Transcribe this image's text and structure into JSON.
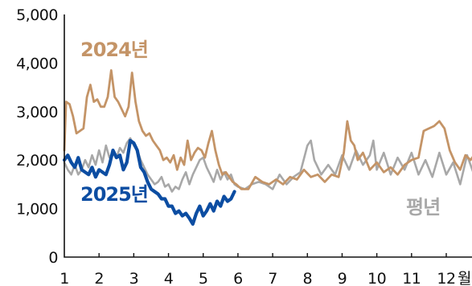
{
  "colors": {
    "y2024": "#C49467",
    "y2025": "#0C4DA2",
    "normal": "#A8A8A8",
    "axis": "#111111"
  },
  "chart_data": {
    "type": "line",
    "title": "",
    "xlabel": "",
    "ylabel": "",
    "x_unit_label": "월",
    "xlim": [
      1,
      13
    ],
    "ylim": [
      0,
      5000
    ],
    "x_ticks": [
      "1",
      "2",
      "3",
      "4",
      "5",
      "6",
      "7",
      "8",
      "9",
      "10",
      "11",
      "12"
    ],
    "y_ticks": [
      "0",
      "1,000",
      "2,000",
      "3,000",
      "4,000",
      "5,000"
    ],
    "grid": false,
    "series": [
      {
        "name": "평년",
        "color_key": "normal",
        "x": [
          1.0,
          1.1,
          1.2,
          1.3,
          1.4,
          1.5,
          1.6,
          1.7,
          1.8,
          1.9,
          2.0,
          2.1,
          2.2,
          2.3,
          2.4,
          2.5,
          2.6,
          2.7,
          2.8,
          2.9,
          3.0,
          3.1,
          3.2,
          3.3,
          3.4,
          3.5,
          3.6,
          3.7,
          3.8,
          3.9,
          4.0,
          4.1,
          4.2,
          4.3,
          4.4,
          4.5,
          4.6,
          4.7,
          4.8,
          4.9,
          5.0,
          5.1,
          5.2,
          5.3,
          5.4,
          5.5,
          5.6,
          5.7,
          5.8,
          5.9,
          6.0,
          6.2,
          6.4,
          6.6,
          6.8,
          7.0,
          7.2,
          7.4,
          7.6,
          7.8,
          8.0,
          8.1,
          8.2,
          8.4,
          8.6,
          8.8,
          9.0,
          9.2,
          9.4,
          9.6,
          9.8,
          9.9,
          10.0,
          10.2,
          10.4,
          10.6,
          10.8,
          11.0,
          11.2,
          11.4,
          11.6,
          11.8,
          12.0,
          12.2,
          12.4,
          12.6,
          12.8,
          12.95
        ],
        "values": [
          1950,
          1800,
          1700,
          1900,
          1700,
          1800,
          2000,
          1850,
          2100,
          1900,
          2200,
          1950,
          2300,
          2050,
          2150,
          2050,
          2250,
          2150,
          2350,
          2450,
          2300,
          2200,
          2000,
          1850,
          1700,
          1600,
          1500,
          1550,
          1650,
          1450,
          1500,
          1350,
          1450,
          1400,
          1600,
          1750,
          1500,
          1700,
          1850,
          2000,
          2050,
          1850,
          1700,
          1550,
          1800,
          1600,
          1750,
          1600,
          1700,
          1500,
          1450,
          1400,
          1500,
          1550,
          1500,
          1400,
          1700,
          1500,
          1650,
          1750,
          2300,
          2400,
          2000,
          1700,
          1900,
          1700,
          2100,
          1800,
          2200,
          1900,
          2100,
          2400,
          1800,
          2150,
          1700,
          2050,
          1800,
          2150,
          1700,
          2000,
          1650,
          2150,
          1700,
          1950,
          1500,
          2100,
          1700,
          1550
        ]
      },
      {
        "name": "2024년",
        "color_key": "y2024",
        "x": [
          1.0,
          1.05,
          1.15,
          1.25,
          1.35,
          1.45,
          1.55,
          1.65,
          1.75,
          1.85,
          1.95,
          2.05,
          2.15,
          2.25,
          2.35,
          2.45,
          2.55,
          2.65,
          2.75,
          2.85,
          2.95,
          3.05,
          3.15,
          3.25,
          3.35,
          3.45,
          3.55,
          3.65,
          3.75,
          3.85,
          3.95,
          4.05,
          4.15,
          4.25,
          4.35,
          4.45,
          4.55,
          4.65,
          4.75,
          4.85,
          4.95,
          5.05,
          5.15,
          5.25,
          5.35,
          5.45,
          5.55,
          5.65,
          5.75,
          5.85,
          5.95,
          6.1,
          6.3,
          6.5,
          6.7,
          6.9,
          7.1,
          7.3,
          7.5,
          7.7,
          7.9,
          8.1,
          8.3,
          8.5,
          8.7,
          8.9,
          9.05,
          9.15,
          9.25,
          9.35,
          9.45,
          9.6,
          9.8,
          10.0,
          10.2,
          10.4,
          10.6,
          10.8,
          11.0,
          11.2,
          11.35,
          11.5,
          11.65,
          11.8,
          11.95,
          12.1,
          12.25,
          12.4,
          12.55,
          12.7,
          12.85,
          12.95
        ],
        "values": [
          2200,
          3200,
          3150,
          2900,
          2550,
          2600,
          2650,
          3300,
          3550,
          3200,
          3250,
          3100,
          3100,
          3300,
          3850,
          3300,
          3200,
          3050,
          2900,
          3100,
          3800,
          3200,
          2800,
          2600,
          2500,
          2550,
          2400,
          2300,
          2200,
          2000,
          2050,
          1950,
          2100,
          1800,
          2050,
          1900,
          2400,
          2000,
          2150,
          2250,
          2200,
          2050,
          2350,
          2600,
          2200,
          1900,
          1700,
          1750,
          1650,
          1550,
          1500,
          1400,
          1400,
          1650,
          1550,
          1500,
          1600,
          1500,
          1650,
          1600,
          1800,
          1650,
          1700,
          1550,
          1700,
          1650,
          2150,
          2800,
          2400,
          2300,
          2000,
          2150,
          1800,
          1950,
          1750,
          1850,
          1700,
          1900,
          2000,
          2050,
          2600,
          2650,
          2700,
          2800,
          2650,
          2200,
          1950,
          1800,
          2100,
          2000,
          2150,
          2100
        ]
      },
      {
        "name": "2025년",
        "color_key": "y2025",
        "x": [
          1.0,
          1.1,
          1.2,
          1.3,
          1.4,
          1.5,
          1.6,
          1.7,
          1.8,
          1.9,
          2.0,
          2.1,
          2.2,
          2.3,
          2.4,
          2.5,
          2.6,
          2.7,
          2.8,
          2.9,
          3.0,
          3.1,
          3.2,
          3.3,
          3.4,
          3.5,
          3.6,
          3.7,
          3.8,
          3.9,
          4.0,
          4.1,
          4.2,
          4.3,
          4.4,
          4.5,
          4.6,
          4.7,
          4.8,
          4.9,
          5.0,
          5.1,
          5.2,
          5.3,
          5.4,
          5.5,
          5.6,
          5.7,
          5.8,
          5.9
        ],
        "values": [
          2000,
          2100,
          1950,
          1850,
          2050,
          1800,
          1750,
          1700,
          1850,
          1650,
          1800,
          1750,
          1700,
          1900,
          2200,
          2050,
          2100,
          1800,
          1950,
          2400,
          2350,
          2200,
          1850,
          1750,
          1550,
          1400,
          1350,
          1300,
          1200,
          1200,
          1050,
          1050,
          900,
          950,
          850,
          900,
          800,
          680,
          900,
          1050,
          850,
          950,
          1100,
          950,
          1150,
          1050,
          1250,
          1150,
          1200,
          1350
        ]
      }
    ]
  }
}
